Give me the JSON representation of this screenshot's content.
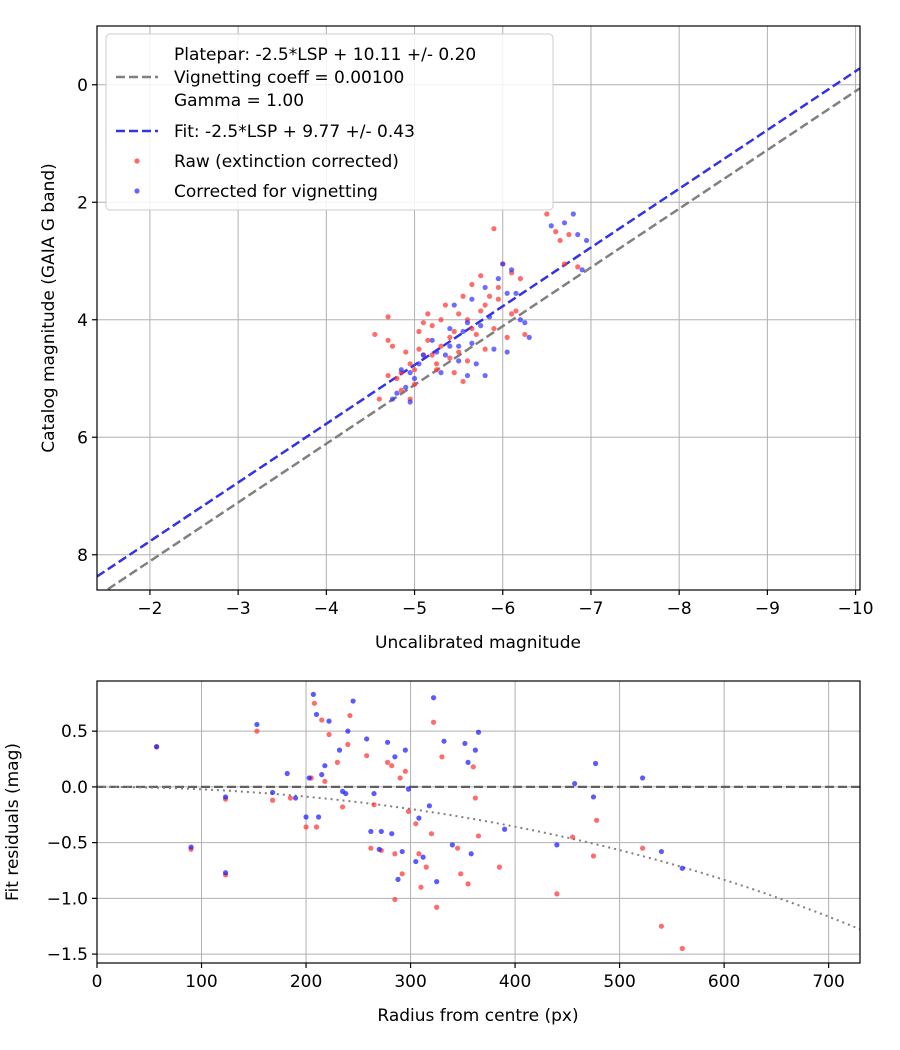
{
  "chart_data": [
    {
      "type": "scatter",
      "xlabel": "Uncalibrated magnitude",
      "ylabel": "Catalog magnitude (GAIA G band)",
      "xlim": [
        -1.4,
        -10.05
      ],
      "ylim": [
        8.6,
        -1.0
      ],
      "xticks": [
        -2,
        -3,
        -4,
        -5,
        -6,
        -7,
        -8,
        -9,
        -10
      ],
      "xtick_labels": [
        "−2",
        "−3",
        "−4",
        "−5",
        "−6",
        "−7",
        "−8",
        "−9",
        "−10"
      ],
      "yticks": [
        0,
        2,
        4,
        6,
        8
      ],
      "ytick_labels": [
        "0",
        "2",
        "4",
        "6",
        "8"
      ],
      "grid": true,
      "legend_position": "top-left",
      "legend": [
        "Platepar: -2.5*LSP + 10.11 +/- 0.20",
        "Vignetting coeff = 0.00100",
        "Gamma = 1.00",
        "Fit: -2.5*LSP + 9.77 +/- 0.43",
        "Raw (extinction corrected)",
        "Corrected for vignetting"
      ],
      "lines": [
        {
          "name": "Platepar",
          "intercept": 10.11,
          "color": "#808080",
          "style": "dashed"
        },
        {
          "name": "Fit",
          "intercept": 9.77,
          "color": "#3333e6",
          "style": "dashed"
        }
      ],
      "series": [
        {
          "name": "Raw (extinction corrected)",
          "color": "#ff3333",
          "points": [
            [
              -4.6,
              5.35
            ],
            [
              -4.55,
              4.25
            ],
            [
              -4.7,
              3.95
            ],
            [
              -4.75,
              4.45
            ],
            [
              -4.7,
              4.95
            ],
            [
              -4.8,
              5.0
            ],
            [
              -4.85,
              4.9
            ],
            [
              -4.9,
              4.55
            ],
            [
              -4.85,
              5.2
            ],
            [
              -4.95,
              5.35
            ],
            [
              -5.0,
              4.85
            ],
            [
              -5.0,
              5.1
            ],
            [
              -5.05,
              4.2
            ],
            [
              -4.95,
              4.75
            ],
            [
              -5.05,
              4.5
            ],
            [
              -5.1,
              4.6
            ],
            [
              -5.15,
              4.35
            ],
            [
              -5.2,
              4.1
            ],
            [
              -5.25,
              4.75
            ],
            [
              -5.15,
              3.9
            ],
            [
              -5.3,
              4.45
            ],
            [
              -5.2,
              4.6
            ],
            [
              -5.35,
              3.75
            ],
            [
              -5.3,
              4.0
            ],
            [
              -5.25,
              4.85
            ],
            [
              -5.4,
              4.3
            ],
            [
              -5.45,
              4.2
            ],
            [
              -5.45,
              4.9
            ],
            [
              -5.5,
              3.9
            ],
            [
              -5.55,
              3.6
            ],
            [
              -5.5,
              4.55
            ],
            [
              -5.6,
              4.0
            ],
            [
              -5.6,
              4.7
            ],
            [
              -5.55,
              5.05
            ],
            [
              -5.65,
              3.4
            ],
            [
              -5.7,
              4.25
            ],
            [
              -5.75,
              3.25
            ],
            [
              -5.75,
              3.85
            ],
            [
              -5.8,
              3.75
            ],
            [
              -5.8,
              4.5
            ],
            [
              -5.85,
              3.6
            ],
            [
              -5.9,
              2.45
            ],
            [
              -5.95,
              3.45
            ],
            [
              -5.95,
              3.65
            ],
            [
              -5.9,
              4.15
            ],
            [
              -6.0,
              3.05
            ],
            [
              -6.05,
              4.3
            ],
            [
              -6.1,
              3.9
            ],
            [
              -6.1,
              3.2
            ],
            [
              -6.15,
              3.85
            ],
            [
              -6.2,
              3.3
            ],
            [
              -6.25,
              4.25
            ],
            [
              -6.5,
              2.2
            ],
            [
              -6.6,
              2.5
            ],
            [
              -6.65,
              2.65
            ],
            [
              -6.7,
              3.05
            ],
            [
              -6.75,
              2.55
            ],
            [
              -6.85,
              3.1
            ],
            [
              -4.7,
              4.35
            ],
            [
              -5.1,
              4.05
            ],
            [
              -5.4,
              4.65
            ],
            [
              -5.65,
              4.15
            ]
          ]
        },
        {
          "name": "Corrected for vignetting",
          "color": "#3333ff",
          "points": [
            [
              -4.75,
              5.35
            ],
            [
              -4.8,
              5.25
            ],
            [
              -4.85,
              4.85
            ],
            [
              -4.9,
              5.15
            ],
            [
              -4.95,
              5.4
            ],
            [
              -4.95,
              4.9
            ],
            [
              -5.0,
              5.0
            ],
            [
              -5.05,
              4.75
            ],
            [
              -5.1,
              4.6
            ],
            [
              -5.2,
              4.35
            ],
            [
              -5.25,
              4.55
            ],
            [
              -5.3,
              4.9
            ],
            [
              -5.35,
              4.6
            ],
            [
              -5.4,
              4.15
            ],
            [
              -5.4,
              4.45
            ],
            [
              -5.45,
              3.75
            ],
            [
              -5.5,
              4.45
            ],
            [
              -5.5,
              4.7
            ],
            [
              -5.55,
              4.2
            ],
            [
              -5.6,
              4.05
            ],
            [
              -5.65,
              3.65
            ],
            [
              -5.65,
              4.4
            ],
            [
              -5.7,
              4.75
            ],
            [
              -5.75,
              4.1
            ],
            [
              -5.8,
              4.95
            ],
            [
              -5.8,
              3.45
            ],
            [
              -5.85,
              3.95
            ],
            [
              -5.9,
              4.5
            ],
            [
              -5.95,
              3.3
            ],
            [
              -6.0,
              3.05
            ],
            [
              -6.05,
              3.55
            ],
            [
              -6.05,
              4.55
            ],
            [
              -6.1,
              3.15
            ],
            [
              -6.15,
              3.55
            ],
            [
              -6.2,
              4.0
            ],
            [
              -6.25,
              4.05
            ],
            [
              -6.3,
              4.3
            ],
            [
              -6.55,
              2.4
            ],
            [
              -6.7,
              2.35
            ],
            [
              -6.8,
              2.2
            ],
            [
              -6.85,
              2.55
            ],
            [
              -6.95,
              2.65
            ],
            [
              -6.9,
              3.15
            ],
            [
              -5.6,
              4.95
            ]
          ]
        }
      ]
    },
    {
      "type": "scatter",
      "xlabel": "Radius from centre (px)",
      "ylabel": "Fit residuals (mag)",
      "xlim": [
        0,
        730
      ],
      "ylim": [
        -1.58,
        0.95
      ],
      "xticks": [
        0,
        100,
        200,
        300,
        400,
        500,
        600,
        700
      ],
      "xtick_labels": [
        "0",
        "100",
        "200",
        "300",
        "400",
        "500",
        "600",
        "700"
      ],
      "yticks": [
        0.5,
        0.0,
        -0.5,
        -1.0,
        -1.5
      ],
      "ytick_labels": [
        "0.5",
        "0.0",
        "−0.5",
        "−1.0",
        "−1.5"
      ],
      "grid": true,
      "reference_line": {
        "y": 0,
        "color": "#606060",
        "style": "dashed"
      },
      "vignetting_curve": {
        "coeff": 0.001,
        "color": "#808080",
        "style": "dotted"
      },
      "series": [
        {
          "name": "Raw (extinction corrected)",
          "color": "#ff3333",
          "points": [
            [
              57,
              0.36
            ],
            [
              90,
              -0.56
            ],
            [
              123,
              -0.11
            ],
            [
              123,
              -0.79
            ],
            [
              153,
              0.5
            ],
            [
              168,
              -0.12
            ],
            [
              185,
              -0.1
            ],
            [
              200,
              -0.36
            ],
            [
              205,
              0.08
            ],
            [
              208,
              0.75
            ],
            [
              210,
              -0.36
            ],
            [
              215,
              0.6
            ],
            [
              218,
              0.05
            ],
            [
              222,
              0.47
            ],
            [
              230,
              0.22
            ],
            [
              235,
              -0.18
            ],
            [
              240,
              0.38
            ],
            [
              242,
              0.64
            ],
            [
              258,
              0.28
            ],
            [
              262,
              -0.55
            ],
            [
              265,
              -0.16
            ],
            [
              272,
              -0.57
            ],
            [
              278,
              0.22
            ],
            [
              282,
              0.19
            ],
            [
              285,
              -0.6
            ],
            [
              285,
              -1.01
            ],
            [
              290,
              0.08
            ],
            [
              292,
              -0.78
            ],
            [
              295,
              0.14
            ],
            [
              298,
              -0.22
            ],
            [
              305,
              -0.33
            ],
            [
              308,
              -0.6
            ],
            [
              310,
              -0.9
            ],
            [
              315,
              -0.72
            ],
            [
              320,
              -0.42
            ],
            [
              322,
              0.58
            ],
            [
              325,
              -1.08
            ],
            [
              330,
              0.27
            ],
            [
              345,
              -0.55
            ],
            [
              348,
              -0.78
            ],
            [
              355,
              -0.87
            ],
            [
              360,
              0.18
            ],
            [
              362,
              -0.1
            ],
            [
              365,
              -0.44
            ],
            [
              385,
              -0.72
            ],
            [
              440,
              -0.96
            ],
            [
              455,
              -0.45
            ],
            [
              475,
              -0.62
            ],
            [
              478,
              -0.3
            ],
            [
              522,
              -0.55
            ],
            [
              540,
              -1.25
            ],
            [
              560,
              -1.45
            ]
          ]
        },
        {
          "name": "Corrected for vignetting",
          "color": "#1a1aff",
          "points": [
            [
              57,
              0.36
            ],
            [
              90,
              -0.54
            ],
            [
              123,
              -0.09
            ],
            [
              123,
              -0.77
            ],
            [
              153,
              0.56
            ],
            [
              168,
              -0.05
            ],
            [
              182,
              0.12
            ],
            [
              190,
              -0.1
            ],
            [
              200,
              -0.27
            ],
            [
              203,
              0.08
            ],
            [
              207,
              0.83
            ],
            [
              210,
              0.65
            ],
            [
              212,
              -0.27
            ],
            [
              215,
              0.11
            ],
            [
              218,
              0.19
            ],
            [
              222,
              0.59
            ],
            [
              232,
              0.33
            ],
            [
              235,
              -0.04
            ],
            [
              238,
              -0.06
            ],
            [
              240,
              0.5
            ],
            [
              245,
              0.77
            ],
            [
              258,
              0.43
            ],
            [
              262,
              -0.4
            ],
            [
              265,
              -0.06
            ],
            [
              270,
              -0.56
            ],
            [
              272,
              -0.4
            ],
            [
              278,
              0.4
            ],
            [
              282,
              -0.42
            ],
            [
              285,
              0.27
            ],
            [
              288,
              -0.83
            ],
            [
              292,
              -0.58
            ],
            [
              295,
              0.33
            ],
            [
              298,
              -0.02
            ],
            [
              305,
              -0.67
            ],
            [
              308,
              -0.28
            ],
            [
              312,
              -0.63
            ],
            [
              318,
              -0.17
            ],
            [
              322,
              0.8
            ],
            [
              325,
              -0.85
            ],
            [
              332,
              0.41
            ],
            [
              340,
              -0.52
            ],
            [
              352,
              0.39
            ],
            [
              355,
              0.22
            ],
            [
              358,
              -0.6
            ],
            [
              362,
              0.33
            ],
            [
              365,
              0.49
            ],
            [
              390,
              -0.38
            ],
            [
              440,
              -0.52
            ],
            [
              457,
              0.03
            ],
            [
              475,
              -0.09
            ],
            [
              477,
              0.21
            ],
            [
              522,
              0.08
            ],
            [
              540,
              -0.58
            ],
            [
              560,
              -0.73
            ]
          ]
        }
      ]
    }
  ]
}
